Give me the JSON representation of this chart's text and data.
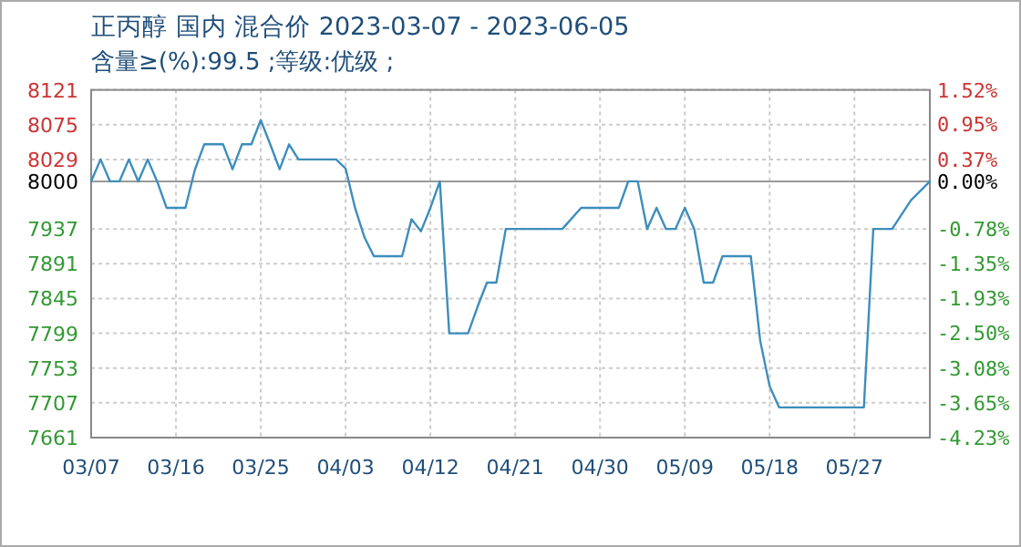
{
  "chart_data": {
    "type": "line",
    "title": "正丙醇 国内 混合价 2023-03-07 - 2023-06-05",
    "subtitle": "含量≥(%):99.5 ;等级:优级 ;",
    "x": [
      "2023-03-07",
      "2023-03-08",
      "2023-03-09",
      "2023-03-10",
      "2023-03-11",
      "2023-03-12",
      "2023-03-13",
      "2023-03-14",
      "2023-03-15",
      "2023-03-17",
      "2023-03-18",
      "2023-03-19",
      "2023-03-21",
      "2023-03-22",
      "2023-03-23",
      "2023-03-24",
      "2023-03-25",
      "2023-03-26",
      "2023-03-27",
      "2023-03-28",
      "2023-03-29",
      "2023-04-02",
      "2023-04-03",
      "2023-04-04",
      "2023-04-05",
      "2023-04-06",
      "2023-04-09",
      "2023-04-10",
      "2023-04-11",
      "2023-04-12",
      "2023-04-13",
      "2023-04-14",
      "2023-04-16",
      "2023-04-17",
      "2023-04-18",
      "2023-04-19",
      "2023-04-20",
      "2023-04-26",
      "2023-04-28",
      "2023-05-02",
      "2023-05-03",
      "2023-05-04",
      "2023-05-05",
      "2023-05-06",
      "2023-05-07",
      "2023-05-08",
      "2023-05-09",
      "2023-05-10",
      "2023-05-11",
      "2023-05-12",
      "2023-05-13",
      "2023-05-16",
      "2023-05-17",
      "2023-05-18",
      "2023-05-19",
      "2023-05-28",
      "2023-05-29",
      "2023-05-31",
      "2023-06-02",
      "2023-06-04"
    ],
    "series": [
      {
        "color": "#3d8ebd",
        "values": [
          8000,
          8029,
          8000,
          8000,
          8029,
          8000,
          8029,
          8000,
          7965,
          7965,
          8015,
          8049,
          8049,
          8016,
          8049,
          8049,
          8081,
          8049,
          8016,
          8049,
          8029,
          8029,
          8017,
          7965,
          7926,
          7901,
          7901,
          7950,
          7934,
          7965,
          8000,
          7799,
          7799,
          7834,
          7866,
          7866,
          7937,
          7937,
          7965,
          7965,
          8000,
          8000,
          7937,
          7965,
          7937,
          7937,
          7965,
          7937,
          7866,
          7866,
          7901,
          7901,
          7789,
          7729,
          7701,
          7701,
          7937,
          7937,
          7975,
          8000
        ]
      }
    ],
    "xlim": [
      "2023-03-07",
      "2023-06-04"
    ],
    "xticks": [
      {
        "value": "2023-03-07",
        "label": "03/07"
      },
      {
        "value": "2023-03-16",
        "label": "03/16"
      },
      {
        "value": "2023-03-25",
        "label": "03/25"
      },
      {
        "value": "2023-04-03",
        "label": "04/03"
      },
      {
        "value": "2023-04-12",
        "label": "04/12"
      },
      {
        "value": "2023-04-21",
        "label": "04/21"
      },
      {
        "value": "2023-04-30",
        "label": "04/30"
      },
      {
        "value": "2023-05-09",
        "label": "05/09"
      },
      {
        "value": "2023-05-18",
        "label": "05/18"
      },
      {
        "value": "2023-05-27",
        "label": "05/27"
      }
    ],
    "ylim": [
      7661,
      8121
    ],
    "yticks": [
      7661,
      7707,
      7753,
      7799,
      7845,
      7891,
      7937,
      8000,
      8029,
      8075,
      8121
    ],
    "y2lim": [
      -4.23,
      1.52
    ],
    "y2ticks": [
      {
        "value": 1.52,
        "label": "1.52%"
      },
      {
        "value": 0.95,
        "label": "0.95%"
      },
      {
        "value": 0.37,
        "label": "0.37%"
      },
      {
        "value": 0,
        "label": "0.00%"
      },
      {
        "value": -0.78,
        "label": "-0.78%"
      },
      {
        "value": -1.35,
        "label": "-1.35%"
      },
      {
        "value": -1.93,
        "label": "-1.93%"
      },
      {
        "value": -2.5,
        "label": "-2.50%"
      },
      {
        "value": -3.08,
        "label": "-3.08%"
      },
      {
        "value": -3.65,
        "label": "-3.65%"
      },
      {
        "value": -4.23,
        "label": "-4.23%"
      }
    ],
    "grid": true,
    "ref_lines": [
      {
        "axis": "y",
        "value": 8000,
        "color": "#999999",
        "line_style": "solid"
      }
    ]
  }
}
